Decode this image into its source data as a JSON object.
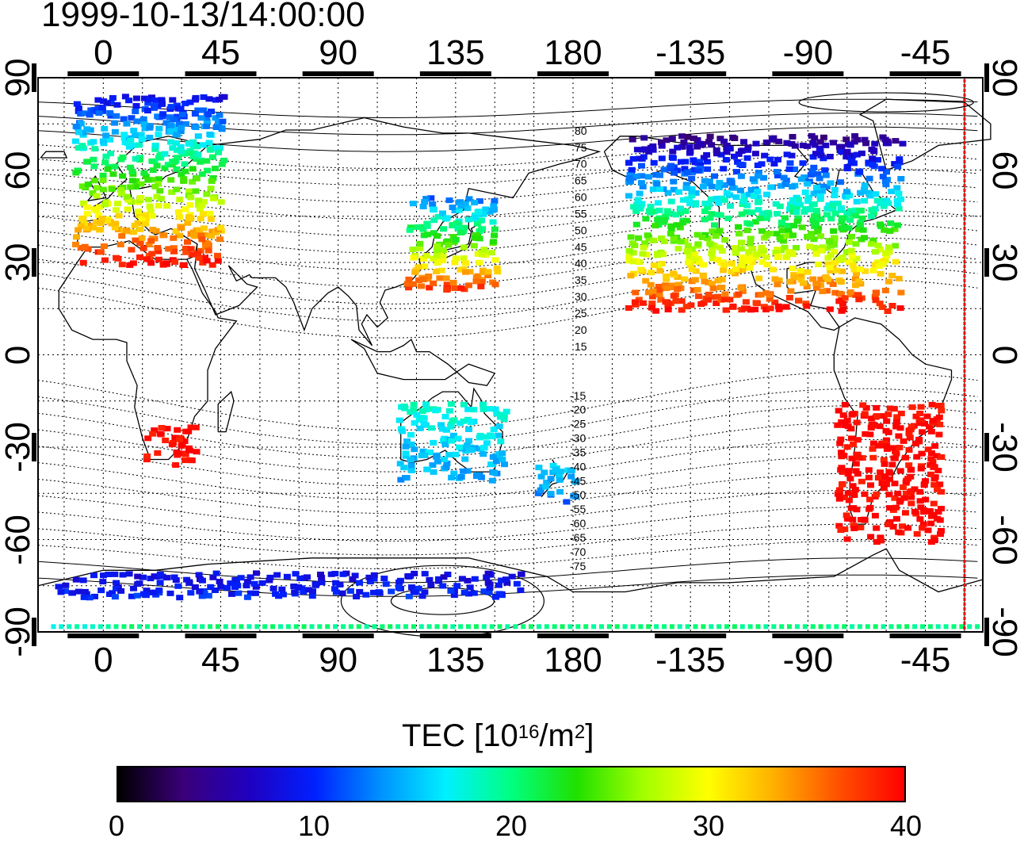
{
  "timestamp": "1999-10-13/14:00:00",
  "axes": {
    "top_ticks": [
      "0",
      "45",
      "90",
      "135",
      "180",
      "-135",
      "-90",
      "-45"
    ],
    "bottom_ticks": [
      "0",
      "45",
      "90",
      "135",
      "180",
      "-135",
      "-90",
      "-45"
    ],
    "left_ticks": [
      "90",
      "60",
      "30",
      "0",
      "-30",
      "-60",
      "-90"
    ],
    "right_ticks": [
      "90",
      "60",
      "30",
      "0",
      "-30",
      "-60",
      "-90"
    ],
    "lon_tick_values": [
      0,
      45,
      90,
      135,
      180,
      225,
      270,
      315
    ],
    "lat_tick_values": [
      90,
      60,
      30,
      0,
      -30,
      -60,
      -90
    ],
    "lon_range": [
      -25,
      337
    ],
    "lat_range": [
      -90,
      90
    ],
    "grid": "dotted 15 degree"
  },
  "contour_labels": {
    "north": [
      "80",
      "75",
      "70",
      "65",
      "60",
      "55",
      "50",
      "45",
      "40",
      "35",
      "30",
      "25",
      "20",
      "15"
    ],
    "south": [
      "-15",
      "-20",
      "-25",
      "-30",
      "-35",
      "-40",
      "-45",
      "-50",
      "-55",
      "-60",
      "-65",
      "-70",
      "-75"
    ]
  },
  "colorbar": {
    "title_main": "TEC  [10",
    "title_exp": "16",
    "title_unit": "/m",
    "title_exp2": "2",
    "title_end": "]",
    "ticks": [
      "0",
      "10",
      "20",
      "30",
      "40"
    ],
    "tick_values": [
      0,
      10,
      20,
      30,
      40
    ],
    "range": [
      0,
      40
    ]
  },
  "terminator": {
    "lon": 330,
    "color": "#ff0000"
  },
  "colormap_stops": [
    "#000000",
    "#3a007a",
    "#2000c0",
    "#0020ff",
    "#0090ff",
    "#00f0ff",
    "#00ff80",
    "#20e000",
    "#a0ff00",
    "#ffff00",
    "#ffb000",
    "#ff5000",
    "#ff0000"
  ],
  "tec_regions": [
    {
      "name": "europe",
      "lon": [
        -12,
        45
      ],
      "lat": [
        30,
        85
      ],
      "tec_north": 8,
      "tec_south": 40
    },
    {
      "name": "north-america",
      "lon": [
        200,
        305
      ],
      "lat": [
        15,
        72
      ],
      "tec_north": 4,
      "tec_south": 40
    },
    {
      "name": "east-asia",
      "lon": [
        115,
        150
      ],
      "lat": [
        22,
        52
      ],
      "tec_north": 12,
      "tec_south": 38
    },
    {
      "name": "south-america",
      "lon": [
        280,
        320
      ],
      "lat": [
        -60,
        -15
      ],
      "tec_north": 40,
      "tec_south": 40
    },
    {
      "name": "australia",
      "lon": [
        112,
        155
      ],
      "lat": [
        -40,
        -15
      ],
      "tec_north": 18,
      "tec_south": 14
    },
    {
      "name": "new-zealand",
      "lon": [
        165,
        180
      ],
      "lat": [
        -48,
        -35
      ],
      "tec_north": 16,
      "tec_south": 12
    },
    {
      "name": "antarctic-band",
      "lon": [
        -20,
        160
      ],
      "lat": [
        -78,
        -70
      ],
      "tec_north": 8,
      "tec_south": 10
    },
    {
      "name": "south-africa",
      "lon": [
        15,
        35
      ],
      "lat": [
        -35,
        -22
      ],
      "tec_north": 40,
      "tec_south": 40
    }
  ]
}
